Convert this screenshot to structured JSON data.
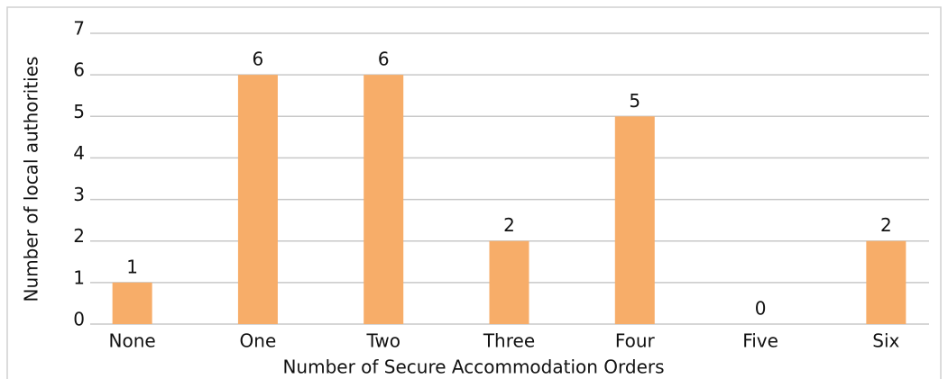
{
  "chart_data": {
    "type": "bar",
    "categories": [
      "None",
      "One",
      "Two",
      "Three",
      "Four",
      "Five",
      "Six"
    ],
    "values": [
      1,
      6,
      6,
      2,
      5,
      0,
      2
    ],
    "color": "#f7ad69",
    "xlabel": "Number of Secure Accommodation Orders",
    "ylabel": "Number of local authorities",
    "ylim": [
      0,
      7
    ],
    "yticks": [
      0,
      1,
      2,
      3,
      4,
      5,
      6,
      7
    ],
    "grid": true
  }
}
